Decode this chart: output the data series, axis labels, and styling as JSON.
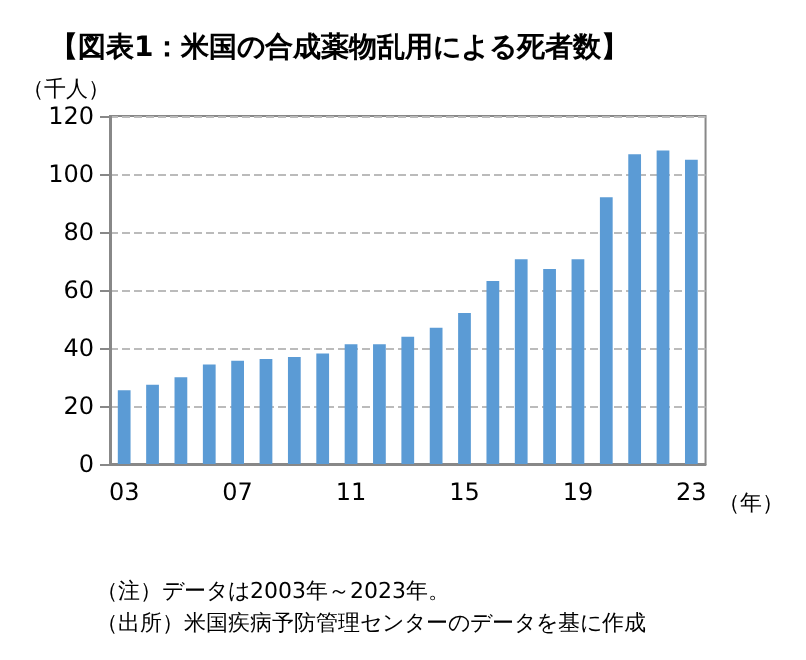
{
  "chart_data": {
    "type": "bar",
    "title": "【図表1：米国の合成薬物乱用による死者数】",
    "ylabel": "（千人）",
    "xlabel": "（年）",
    "categories": [
      "03",
      null,
      null,
      null,
      "07",
      null,
      null,
      null,
      "11",
      null,
      null,
      null,
      "15",
      null,
      null,
      null,
      "19",
      null,
      null,
      null,
      "23"
    ],
    "values": [
      25.4,
      27.3,
      29.9,
      34.3,
      35.6,
      36.2,
      36.9,
      38.1,
      41.3,
      41.3,
      43.9,
      47.0,
      52.1,
      63.1,
      70.6,
      67.2,
      70.6,
      92.0,
      106.8,
      108.1,
      104.9
    ],
    "color": "#5b9bd5",
    "ylim": [
      0,
      120
    ],
    "yticks": [
      0,
      20,
      40,
      60,
      80,
      100,
      120
    ],
    "grid": "y",
    "annotations": [
      "（注）データは2003年～2023年。",
      "（出所）米国疾病予防管理センターのデータを基に作成"
    ]
  }
}
